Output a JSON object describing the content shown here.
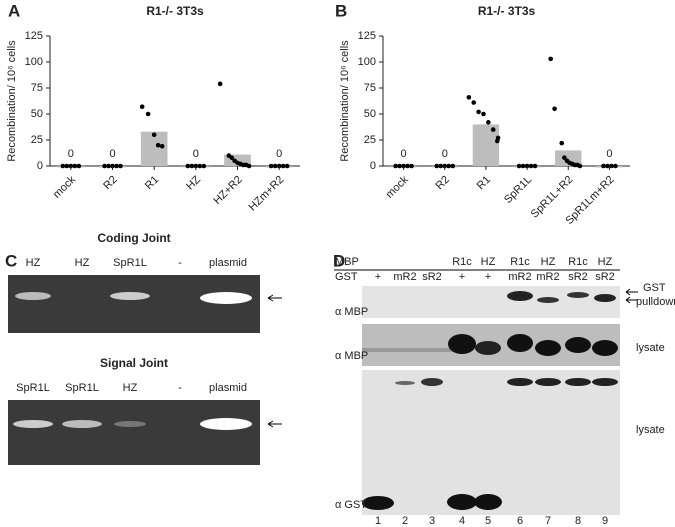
{
  "chart_data": [
    {
      "type": "bar",
      "panel": "A",
      "title": "R1-/- 3T3s",
      "y_label": "Recombination/ 10⁶ cells",
      "categories": [
        "mock",
        "R2",
        "R1",
        "HZ",
        "HZ+R2",
        "HZm+R2"
      ],
      "values": [
        0,
        0,
        33,
        0,
        11,
        0
      ],
      "value_labels": [
        "0",
        "0",
        null,
        "0",
        null,
        "0"
      ],
      "points": [
        [
          0,
          0,
          0,
          0,
          0
        ],
        [
          0,
          0,
          0,
          0,
          0
        ],
        [
          57,
          50,
          30,
          20,
          19
        ],
        [
          0,
          0,
          0,
          0,
          0
        ],
        [
          79,
          10,
          8,
          5,
          3,
          2,
          1,
          1,
          0
        ],
        [
          0,
          0,
          0,
          0,
          0
        ]
      ],
      "color": "#bdbdbd",
      "point_color": "#000000",
      "ylim": [
        0,
        125
      ],
      "yticks": [
        0,
        25,
        50,
        75,
        100,
        125
      ]
    },
    {
      "type": "bar",
      "panel": "B",
      "title": "R1-/- 3T3s",
      "y_label": "Recombination/ 10⁶ cells",
      "categories": [
        "mock",
        "R2",
        "R1",
        "SpR1L",
        "SpR1L+R2",
        "SpR1Lm+R2"
      ],
      "values": [
        0,
        0,
        40,
        0,
        15,
        0
      ],
      "value_labels": [
        "0",
        "0",
        null,
        null,
        null,
        "0"
      ],
      "points": [
        [
          0,
          0,
          0,
          0,
          0
        ],
        [
          0,
          0,
          0,
          0,
          0
        ],
        [
          66,
          61,
          52,
          50,
          42,
          35,
          27,
          24
        ],
        [
          0,
          0,
          0,
          0,
          0
        ],
        [
          103,
          55,
          22,
          8,
          5,
          3,
          2,
          1,
          1,
          0
        ],
        [
          0,
          0,
          0,
          0
        ]
      ],
      "color": "#bdbdbd",
      "point_color": "#000000",
      "ylim": [
        0,
        125
      ],
      "yticks": [
        0,
        25,
        50,
        75,
        100,
        125
      ]
    }
  ],
  "panel_c": {
    "label": "C",
    "gels": [
      {
        "title": "Coding Joint",
        "lanes": [
          "HZ",
          "HZ",
          "SpR1L",
          "-",
          "plasmid"
        ]
      },
      {
        "title": "Signal Joint",
        "lanes": [
          "SpR1L",
          "SpR1L",
          "HZ",
          "-",
          "plasmid"
        ]
      }
    ]
  },
  "panel_d": {
    "label": "D",
    "rows": [
      {
        "label": "MBP",
        "lanes": [
          null,
          null,
          null,
          "R1c",
          "HZ",
          "R1c",
          "HZ",
          "R1c",
          "HZ"
        ]
      },
      {
        "label": "GST",
        "lanes": [
          "+",
          "mR2",
          "sR2",
          "+",
          "+",
          "mR2",
          "mR2",
          "sR2",
          "sR2"
        ]
      }
    ],
    "blots": [
      {
        "antibody": "α MBP",
        "note": [
          "GST",
          "pulldown"
        ]
      },
      {
        "antibody": "α MBP",
        "note": [
          "lysate"
        ]
      },
      {
        "antibody": "α GST",
        "note": [
          "lysate"
        ]
      }
    ],
    "lane_numbers": [
      1,
      2,
      3,
      4,
      5,
      6,
      7,
      8,
      9
    ]
  }
}
